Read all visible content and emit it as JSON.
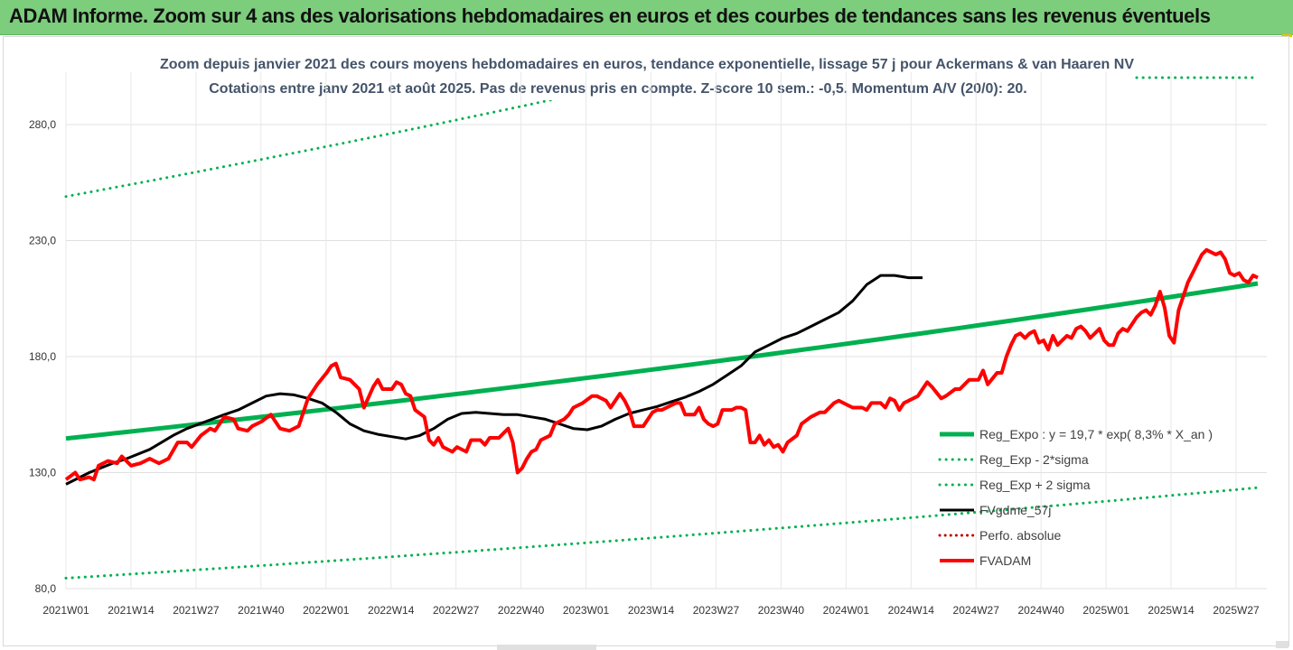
{
  "header": {
    "title": "ADAM Informe. Zoom sur 4 ans des valorisations hebdomadaires en euros et des courbes de tendances sans les revenus éventuels"
  },
  "colors": {
    "header_bg": "#7ccd7c",
    "trend": "#00b050",
    "smooth": "#000000",
    "price": "#ff0000",
    "perf": "#c00000"
  },
  "chart_data": {
    "type": "line",
    "title": "Zoom depuis janvier 2021 des cours moyens hebdomadaires en euros, tendance exponentielle, lissage 57 j pour Ackermans & van Haaren NV",
    "subtitle": "Cotations entre janv 2021 et août 2025. Pas de revenus pris en compte. Z-score 10 sem.: -0,5. Momentum A/V (20/0): 20.",
    "xlabel": "",
    "ylabel": "",
    "ylim": [
      80,
      290
    ],
    "yticks": [
      "80,0",
      "130,0",
      "180,0",
      "230,0",
      "280,0"
    ],
    "ytick_values": [
      80,
      130,
      180,
      230,
      280
    ],
    "xticks": [
      "2021W01",
      "2021W14",
      "2021W27",
      "2021W40",
      "2022W01",
      "2022W14",
      "2022W27",
      "2022W40",
      "2023W01",
      "2023W14",
      "2023W27",
      "2023W40",
      "2024W01",
      "2024W14",
      "2024W27",
      "2024W40",
      "2025W01",
      "2025W14",
      "2025W27"
    ],
    "grid": true,
    "legend_position": "bottom-right",
    "n_weeks": 135,
    "series": [
      {
        "name": "Reg_Expo : y = 19,7 * exp( 8,3% *  X_an )",
        "style": "trend",
        "points": [
          [
            0,
            144.7
          ],
          [
            134,
            211.5
          ]
        ]
      },
      {
        "name": "Reg_Exp - 2*sigma",
        "style": "dotted",
        "points": [
          [
            0,
            84.5
          ],
          [
            134,
            123.5
          ]
        ]
      },
      {
        "name": "Reg_Exp + 2 sigma",
        "style": "dotted",
        "points": [
          [
            0,
            249
          ],
          [
            134,
            364
          ]
        ]
      },
      {
        "name": "FVgdme_57j",
        "style": "smooth",
        "points": [
          [
            0,
            125
          ],
          [
            5,
            130
          ],
          [
            10,
            134
          ],
          [
            13,
            136
          ],
          [
            18,
            140
          ],
          [
            23,
            146
          ],
          [
            26,
            149
          ],
          [
            30,
            152
          ],
          [
            34,
            155
          ],
          [
            37,
            157
          ],
          [
            40,
            160
          ],
          [
            43,
            163
          ],
          [
            46,
            164
          ],
          [
            49,
            163.5
          ],
          [
            52,
            162
          ],
          [
            55,
            160
          ],
          [
            58,
            156
          ],
          [
            61,
            151
          ],
          [
            64,
            148
          ],
          [
            67,
            146.5
          ],
          [
            70,
            145.5
          ],
          [
            73,
            144.5
          ],
          [
            76,
            146
          ],
          [
            79,
            149
          ],
          [
            82,
            153
          ],
          [
            85,
            155.5
          ],
          [
            88,
            156
          ],
          [
            91,
            155.5
          ],
          [
            94,
            155
          ],
          [
            97,
            155
          ],
          [
            100,
            154
          ],
          [
            103,
            153
          ],
          [
            106,
            151
          ],
          [
            109,
            149
          ],
          [
            112,
            148.5
          ],
          [
            115,
            150
          ],
          [
            118,
            153
          ],
          [
            121,
            155.5
          ],
          [
            124,
            157
          ],
          [
            127,
            158.5
          ],
          [
            130,
            160.5
          ],
          [
            133,
            162.5
          ],
          [
            136,
            165
          ],
          [
            139,
            168
          ],
          [
            142,
            172
          ],
          [
            145,
            176
          ],
          [
            148,
            182
          ],
          [
            151,
            185
          ],
          [
            154,
            188
          ],
          [
            157,
            190
          ],
          [
            160,
            193
          ],
          [
            163,
            196
          ],
          [
            166,
            199
          ],
          [
            169,
            204
          ],
          [
            172,
            211
          ],
          [
            175,
            215
          ],
          [
            178,
            215
          ],
          [
            181,
            214
          ],
          [
            184,
            214
          ]
        ]
      },
      {
        "name": "Perfo. absolue",
        "style": "perf",
        "points": []
      },
      {
        "name": "FVADAM",
        "style": "price",
        "points": [
          [
            0,
            127
          ],
          [
            2,
            130
          ],
          [
            3,
            127
          ],
          [
            5,
            128
          ],
          [
            6,
            127
          ],
          [
            7,
            133
          ],
          [
            9,
            135
          ],
          [
            11,
            134
          ],
          [
            12,
            137
          ],
          [
            14,
            133
          ],
          [
            16,
            134
          ],
          [
            18,
            136
          ],
          [
            20,
            134
          ],
          [
            22,
            136
          ],
          [
            24,
            143
          ],
          [
            26,
            143
          ],
          [
            27,
            141
          ],
          [
            29,
            146
          ],
          [
            31,
            149
          ],
          [
            32,
            148
          ],
          [
            34,
            154
          ],
          [
            36,
            153
          ],
          [
            37,
            149
          ],
          [
            39,
            148
          ],
          [
            40,
            150
          ],
          [
            42,
            152
          ],
          [
            44,
            155
          ],
          [
            46,
            149
          ],
          [
            48,
            148
          ],
          [
            50,
            150
          ],
          [
            52,
            162
          ],
          [
            54,
            168
          ],
          [
            56,
            173
          ],
          [
            57,
            176
          ],
          [
            58,
            177
          ],
          [
            59,
            171
          ],
          [
            61,
            170
          ],
          [
            63,
            166
          ],
          [
            64,
            158
          ],
          [
            66,
            167
          ],
          [
            67,
            170
          ],
          [
            68,
            166
          ],
          [
            70,
            166
          ],
          [
            71,
            169
          ],
          [
            72,
            168
          ],
          [
            73,
            164
          ],
          [
            74,
            163
          ],
          [
            75,
            157
          ],
          [
            77,
            154
          ],
          [
            78,
            144
          ],
          [
            79,
            142
          ],
          [
            80,
            145
          ],
          [
            81,
            141
          ],
          [
            83,
            139
          ],
          [
            84,
            141
          ],
          [
            86,
            139
          ],
          [
            87,
            144
          ],
          [
            89,
            144
          ],
          [
            90,
            142
          ],
          [
            91,
            145
          ],
          [
            93,
            145
          ],
          [
            94,
            147
          ],
          [
            95,
            149
          ],
          [
            96,
            143
          ],
          [
            97,
            130
          ],
          [
            98,
            132
          ],
          [
            99,
            136
          ],
          [
            100,
            139
          ],
          [
            101,
            140
          ],
          [
            102,
            144
          ],
          [
            104,
            146
          ],
          [
            105,
            151
          ],
          [
            107,
            153
          ],
          [
            108,
            155
          ],
          [
            109,
            158
          ],
          [
            111,
            160
          ],
          [
            113,
            163
          ],
          [
            114,
            163
          ],
          [
            116,
            161
          ],
          [
            117,
            158
          ],
          [
            119,
            164
          ],
          [
            120,
            161
          ],
          [
            121,
            157
          ],
          [
            122,
            150
          ],
          [
            124,
            150
          ],
          [
            126,
            156
          ],
          [
            127,
            157
          ],
          [
            128,
            157
          ],
          [
            129,
            158
          ],
          [
            131,
            160
          ],
          [
            132,
            160
          ],
          [
            133,
            155
          ],
          [
            135,
            155
          ],
          [
            136,
            158
          ],
          [
            137,
            153
          ],
          [
            138,
            151
          ],
          [
            139,
            150
          ],
          [
            140,
            151
          ],
          [
            141,
            157
          ],
          [
            143,
            157
          ],
          [
            144,
            158
          ],
          [
            145,
            158
          ],
          [
            146,
            157
          ],
          [
            147,
            143
          ],
          [
            148,
            143
          ],
          [
            149,
            146
          ],
          [
            150,
            142
          ],
          [
            151,
            144
          ],
          [
            152,
            141
          ],
          [
            153,
            142
          ],
          [
            154,
            139
          ],
          [
            155,
            143
          ],
          [
            157,
            146
          ],
          [
            158,
            151
          ],
          [
            160,
            154
          ],
          [
            162,
            156
          ],
          [
            163,
            156
          ],
          [
            165,
            160
          ],
          [
            166,
            161
          ],
          [
            168,
            159
          ],
          [
            169,
            158
          ],
          [
            170,
            158
          ],
          [
            171,
            158
          ],
          [
            172,
            157
          ],
          [
            173,
            160
          ],
          [
            175,
            160
          ],
          [
            176,
            158
          ],
          [
            177,
            162
          ],
          [
            178,
            161
          ],
          [
            179,
            157
          ],
          [
            180,
            160
          ],
          [
            182,
            162
          ],
          [
            183,
            163
          ],
          [
            184,
            166
          ],
          [
            185,
            169
          ],
          [
            186,
            167
          ],
          [
            188,
            162
          ],
          [
            189,
            163
          ],
          [
            191,
            166
          ],
          [
            192,
            166
          ],
          [
            194,
            170
          ],
          [
            196,
            170
          ],
          [
            197,
            174
          ],
          [
            198,
            168
          ],
          [
            200,
            173
          ],
          [
            201,
            173
          ],
          [
            202,
            180
          ],
          [
            203,
            185
          ],
          [
            204,
            189
          ],
          [
            205,
            190
          ],
          [
            206,
            188
          ],
          [
            207,
            190
          ],
          [
            208,
            191
          ],
          [
            209,
            186
          ],
          [
            210,
            187
          ],
          [
            211,
            183
          ],
          [
            212,
            189
          ],
          [
            213,
            185
          ],
          [
            214,
            187
          ],
          [
            215,
            189
          ],
          [
            216,
            188
          ],
          [
            217,
            192
          ],
          [
            218,
            193
          ],
          [
            219,
            191
          ],
          [
            220,
            188
          ],
          [
            221,
            190
          ],
          [
            222,
            192
          ],
          [
            223,
            187
          ],
          [
            224,
            185
          ],
          [
            225,
            185
          ],
          [
            226,
            190
          ],
          [
            227,
            192
          ],
          [
            228,
            191
          ],
          [
            229,
            194
          ],
          [
            230,
            197
          ],
          [
            231,
            199
          ],
          [
            232,
            200
          ],
          [
            233,
            198
          ],
          [
            234,
            202
          ],
          [
            235,
            208
          ],
          [
            236,
            201
          ],
          [
            237,
            189
          ],
          [
            238,
            186
          ],
          [
            239,
            200
          ],
          [
            240,
            206
          ],
          [
            241,
            212
          ],
          [
            242,
            216
          ],
          [
            243,
            220
          ],
          [
            244,
            224
          ],
          [
            245,
            226
          ],
          [
            246,
            225
          ],
          [
            247,
            224
          ],
          [
            248,
            225
          ],
          [
            249,
            222
          ],
          [
            250,
            216
          ],
          [
            251,
            215
          ],
          [
            252,
            216
          ],
          [
            253,
            213
          ],
          [
            254,
            212
          ],
          [
            255,
            215
          ],
          [
            256,
            214
          ]
        ]
      }
    ]
  }
}
